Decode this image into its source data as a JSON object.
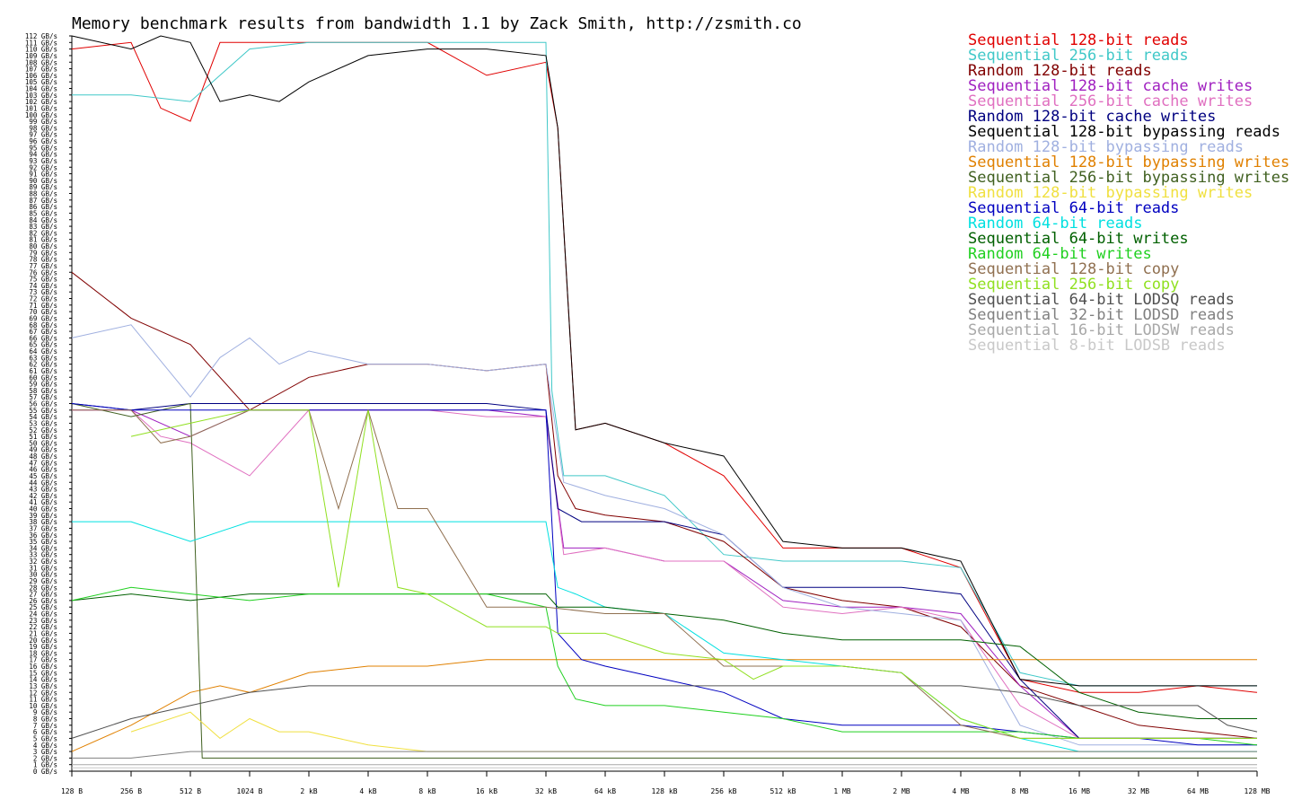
{
  "chart_data": {
    "type": "line",
    "title": "Memory benchmark results from bandwidth 1.1 by Zack Smith, http://zsmith.co",
    "xlabel": "",
    "ylabel": "",
    "x_ticks": [
      "128 B",
      "256 B",
      "512 B",
      "1024 B",
      "2 kB",
      "4 kB",
      "8 kB",
      "16 kB",
      "32 kB",
      "64 kB",
      "128 kB",
      "256 kB",
      "512 kB",
      "1 MB",
      "2 MB",
      "4 MB",
      "8 MB",
      "16 MB",
      "32 MB",
      "64 MB",
      "128 MB"
    ],
    "y_unit": "GB/s",
    "ylim": [
      0,
      112
    ],
    "grid": false,
    "legend_position": "top-right",
    "series": [
      {
        "name": "Sequential 128-bit reads",
        "color": "#e00000",
        "x": [
          0,
          1,
          1.5,
          2,
          2.5,
          3,
          4,
          5,
          6,
          7,
          8,
          8.2,
          8.5,
          9,
          10,
          11,
          12,
          13,
          14,
          15,
          16,
          17,
          18,
          19,
          20
        ],
        "values": [
          110,
          111,
          101,
          99,
          111,
          111,
          111,
          111,
          111,
          106,
          108,
          98,
          52,
          53,
          50,
          45,
          34,
          34,
          34,
          31,
          14,
          12,
          12,
          13,
          12
        ]
      },
      {
        "name": "Sequential 256-bit reads",
        "color": "#40c8c8",
        "x": [
          0,
          1,
          2,
          2.5,
          3,
          4,
          5,
          6,
          7,
          8,
          8.1,
          8.3,
          9,
          10,
          11,
          12,
          13,
          14,
          15,
          16,
          17,
          18,
          19,
          20
        ],
        "values": [
          103,
          103,
          102,
          106,
          110,
          111,
          111,
          111,
          111,
          111,
          58,
          45,
          45,
          42,
          33,
          32,
          32,
          32,
          31,
          15,
          13,
          13,
          13,
          13
        ]
      },
      {
        "name": "Random 128-bit reads",
        "color": "#800000",
        "x": [
          0,
          1,
          2,
          3,
          4,
          5,
          6,
          7,
          8,
          8.2,
          8.5,
          9,
          10,
          11,
          12,
          13,
          14,
          15,
          16,
          17,
          18,
          19,
          20
        ],
        "values": [
          76,
          69,
          65,
          55,
          60,
          62,
          62,
          61,
          62,
          45,
          40,
          39,
          38,
          35,
          28,
          26,
          25,
          22,
          13,
          10,
          7,
          6,
          5
        ]
      },
      {
        "name": "Sequential 128-bit cache writes",
        "color": "#a020c0",
        "x": [
          0,
          1,
          2,
          3,
          4,
          5,
          6,
          7,
          8,
          8.3,
          9,
          10,
          11,
          12,
          13,
          14,
          15,
          16,
          17,
          18,
          19,
          20
        ],
        "values": [
          55,
          55,
          51,
          55,
          55,
          55,
          55,
          55,
          54,
          34,
          34,
          32,
          32,
          26,
          25,
          25,
          24,
          13,
          5,
          5,
          5,
          5
        ]
      },
      {
        "name": "Sequential 256-bit cache writes",
        "color": "#e070c0",
        "x": [
          0,
          1,
          1.5,
          2,
          3,
          4,
          5,
          6,
          7,
          8,
          8.3,
          9,
          10,
          11,
          12,
          13,
          14,
          15,
          16,
          17,
          18,
          19,
          20
        ],
        "values": [
          55,
          55,
          51,
          50,
          45,
          55,
          55,
          55,
          54,
          54,
          33,
          34,
          32,
          32,
          25,
          24,
          25,
          23,
          10,
          5,
          5,
          5,
          5
        ]
      },
      {
        "name": "Random 128-bit cache writes",
        "color": "#000080",
        "x": [
          0,
          1,
          2,
          3,
          4,
          5,
          6,
          7,
          8,
          8.2,
          8.6,
          9,
          10,
          11,
          12,
          13,
          14,
          15,
          16,
          17,
          18,
          19,
          20
        ],
        "values": [
          56,
          55,
          56,
          56,
          56,
          56,
          56,
          56,
          55,
          40,
          38,
          38,
          38,
          36,
          28,
          28,
          28,
          27,
          14,
          5,
          5,
          5,
          5
        ]
      },
      {
        "name": "Sequential 128-bit bypassing reads",
        "color": "#000000",
        "x": [
          0,
          1,
          1.5,
          2,
          2.5,
          3,
          3.5,
          4,
          5,
          6,
          7,
          8,
          8.2,
          8.5,
          9,
          10,
          11,
          12,
          13,
          14,
          15,
          16,
          17,
          18,
          19,
          20
        ],
        "values": [
          112,
          110,
          112,
          111,
          102,
          103,
          102,
          105,
          109,
          110,
          110,
          109,
          98,
          52,
          53,
          50,
          48,
          35,
          34,
          34,
          32,
          14,
          13,
          13,
          13,
          13
        ]
      },
      {
        "name": "Random 128-bit bypassing reads",
        "color": "#a0b0e0",
        "x": [
          0,
          1,
          2,
          2.5,
          3,
          3.5,
          4,
          5,
          6,
          7,
          8,
          8.3,
          9,
          10,
          11,
          12,
          13,
          14,
          15,
          16,
          17,
          18,
          19,
          20
        ],
        "values": [
          66,
          68,
          57,
          63,
          66,
          62,
          64,
          62,
          62,
          61,
          62,
          44,
          42,
          40,
          36,
          28,
          25,
          24,
          23,
          7,
          4,
          4,
          4,
          4
        ]
      },
      {
        "name": "Sequential 128-bit bypassing writes",
        "color": "#e08000",
        "x": [
          0,
          1,
          2,
          2.5,
          3,
          4,
          5,
          6,
          7,
          8,
          9,
          10,
          11,
          12,
          13,
          14,
          15,
          16,
          17,
          18,
          19,
          20
        ],
        "values": [
          3,
          7,
          12,
          13,
          12,
          15,
          16,
          16,
          17,
          17,
          17,
          17,
          17,
          17,
          17,
          17,
          17,
          17,
          17,
          17,
          17,
          17
        ]
      },
      {
        "name": "Sequential 256-bit bypassing writes",
        "color": "#406020",
        "x": [
          0,
          1,
          2,
          2.2,
          3,
          4,
          5,
          6,
          7,
          8,
          9,
          10,
          11,
          12,
          13,
          14,
          15,
          16,
          17,
          18,
          19,
          20
        ],
        "values": [
          56,
          54,
          56,
          2,
          2,
          2,
          2,
          2,
          2,
          2,
          2,
          2,
          2,
          2,
          2,
          2,
          2,
          2,
          2,
          2,
          2,
          2
        ]
      },
      {
        "name": "Random 128-bit bypassing writes",
        "color": "#f0e040",
        "x": [
          1,
          2,
          2.5,
          3,
          3.5,
          4,
          5,
          6,
          7,
          8,
          9,
          10,
          11,
          12,
          13,
          14,
          15,
          16,
          17,
          18,
          19,
          20
        ],
        "values": [
          6,
          9,
          5,
          8,
          6,
          6,
          4,
          3,
          3,
          3,
          3,
          3,
          3,
          3,
          3,
          3,
          3,
          3,
          3,
          3,
          3,
          3
        ]
      },
      {
        "name": "Sequential 64-bit reads",
        "color": "#0000c0",
        "x": [
          0,
          1,
          2,
          3,
          4,
          5,
          6,
          7,
          8,
          8.2,
          8.6,
          9,
          10,
          11,
          12,
          13,
          14,
          15,
          16,
          17,
          18,
          19,
          20
        ],
        "values": [
          56,
          55,
          55,
          55,
          55,
          55,
          55,
          55,
          55,
          21,
          17,
          16,
          14,
          12,
          8,
          7,
          7,
          7,
          6,
          5,
          5,
          4,
          4
        ]
      },
      {
        "name": "Random 64-bit reads",
        "color": "#00e0e0",
        "x": [
          0,
          1,
          2,
          3,
          4,
          5,
          6,
          7,
          8,
          8.2,
          8.5,
          9,
          10,
          11,
          12,
          13,
          14,
          15,
          16,
          17,
          18,
          19,
          20
        ],
        "values": [
          38,
          38,
          35,
          38,
          38,
          38,
          38,
          38,
          38,
          28,
          27,
          25,
          24,
          18,
          17,
          16,
          15,
          8,
          5,
          3,
          3,
          3,
          3
        ]
      },
      {
        "name": "Sequential 64-bit writes",
        "color": "#006000",
        "x": [
          0,
          1,
          2,
          3,
          4,
          5,
          6,
          7,
          8,
          8.2,
          9,
          10,
          11,
          12,
          13,
          14,
          15,
          16,
          17,
          18,
          19,
          20
        ],
        "values": [
          26,
          27,
          26,
          27,
          27,
          27,
          27,
          27,
          27,
          25,
          25,
          24,
          23,
          21,
          20,
          20,
          20,
          19,
          12,
          9,
          8,
          8
        ]
      },
      {
        "name": "Random 64-bit writes",
        "color": "#20d020",
        "x": [
          0,
          1,
          2,
          3,
          4,
          5,
          6,
          7,
          8,
          8.2,
          8.5,
          9,
          10,
          11,
          12,
          13,
          14,
          15,
          16,
          17,
          18,
          19,
          20
        ],
        "values": [
          26,
          28,
          27,
          26,
          27,
          27,
          27,
          27,
          25,
          16,
          11,
          10,
          10,
          9,
          8,
          6,
          6,
          6,
          6,
          5,
          5,
          5,
          4
        ]
      },
      {
        "name": "Sequential 128-bit copy",
        "color": "#907050",
        "x": [
          0,
          1,
          1.5,
          2,
          3,
          4,
          4.5,
          5,
          5.5,
          6,
          7,
          8,
          9,
          10,
          11,
          12,
          13,
          14,
          15,
          16,
          17,
          18,
          19,
          20
        ],
        "values": [
          55,
          55,
          50,
          51,
          55,
          55,
          40,
          55,
          40,
          40,
          25,
          25,
          24,
          24,
          16,
          16,
          16,
          15,
          7,
          5,
          5,
          5,
          5,
          5
        ]
      },
      {
        "name": "Sequential 256-bit copy",
        "color": "#90e020",
        "x": [
          1,
          2,
          3,
          4,
          4.5,
          5,
          5.5,
          6,
          7,
          8,
          8.2,
          9,
          10,
          11,
          11.5,
          12,
          13,
          14,
          15,
          16,
          17,
          18,
          19,
          20
        ],
        "values": [
          51,
          53,
          55,
          55,
          28,
          55,
          28,
          27,
          22,
          22,
          21,
          21,
          18,
          17,
          14,
          16,
          16,
          15,
          8,
          5,
          5,
          5,
          5,
          5
        ]
      },
      {
        "name": "Sequential 64-bit LODSQ reads",
        "color": "#505050",
        "x": [
          0,
          1,
          2,
          3,
          4,
          5,
          6,
          7,
          8,
          9,
          10,
          11,
          12,
          13,
          14,
          15,
          16,
          17,
          18,
          19,
          19.5,
          20
        ],
        "values": [
          5,
          8,
          10,
          12,
          13,
          13,
          13,
          13,
          13,
          13,
          13,
          13,
          13,
          13,
          13,
          13,
          12,
          10,
          10,
          10,
          7,
          6
        ]
      },
      {
        "name": "Sequential 32-bit LODSD reads",
        "color": "#808080",
        "x": [
          0,
          1,
          2,
          3,
          4,
          5,
          6,
          7,
          8,
          9,
          10,
          11,
          12,
          13,
          14,
          15,
          16,
          17,
          18,
          19,
          20
        ],
        "values": [
          2,
          2,
          3,
          3,
          3,
          3,
          3,
          3,
          3,
          3,
          3,
          3,
          3,
          3,
          3,
          3,
          3,
          3,
          3,
          3,
          3
        ]
      },
      {
        "name": "Sequential 16-bit LODSW reads",
        "color": "#a8a8a8",
        "x": [
          0,
          1,
          2,
          3,
          4,
          5,
          6,
          7,
          8,
          9,
          10,
          11,
          12,
          13,
          14,
          15,
          16,
          17,
          18,
          19,
          20
        ],
        "values": [
          1,
          1,
          1,
          1,
          1,
          1,
          1,
          1,
          1,
          1,
          1,
          1,
          1,
          1,
          1,
          1,
          1,
          1,
          1,
          1,
          1
        ]
      },
      {
        "name": "Sequential 8-bit LODSB reads",
        "color": "#c8c8c8",
        "x": [
          0,
          1,
          2,
          3,
          4,
          5,
          6,
          7,
          8,
          9,
          10,
          11,
          12,
          13,
          14,
          15,
          16,
          17,
          18,
          19,
          20
        ],
        "values": [
          0.5,
          0.5,
          0.5,
          0.5,
          0.5,
          0.5,
          0.5,
          0.5,
          0.5,
          0.5,
          0.5,
          0.5,
          0.5,
          0.5,
          0.5,
          0.5,
          0.5,
          0.5,
          0.5,
          0.5,
          0.5
        ]
      }
    ]
  }
}
